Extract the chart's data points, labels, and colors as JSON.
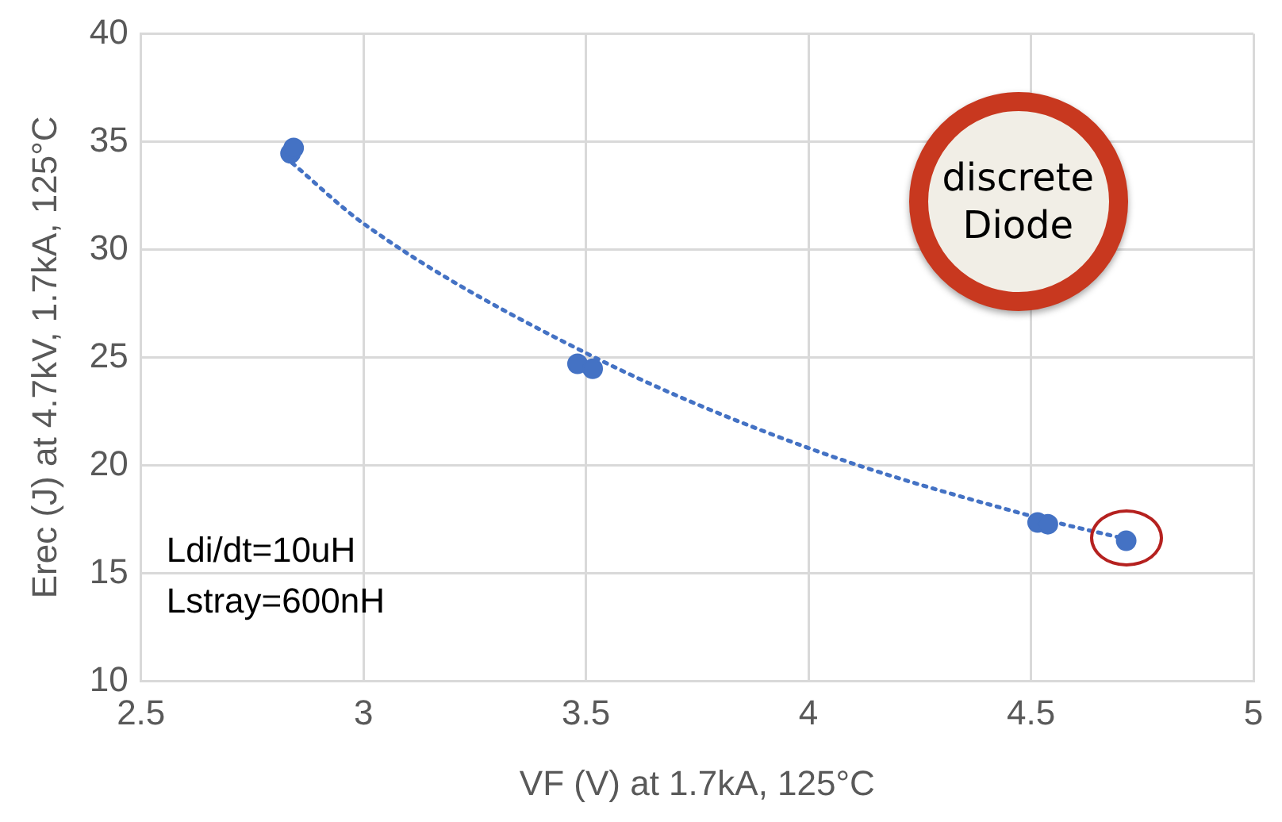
{
  "chart_data": {
    "type": "scatter",
    "xlabel": "VF (V) at 1.7kA, 125°C",
    "ylabel": "Erec (J) at 4.7kV, 1.7kA, 125°C",
    "series": [
      {
        "color": "#4472c4",
        "x": [
          2.836,
          2.843,
          3.481,
          3.515,
          4.515,
          4.538,
          4.714
        ],
        "values": [
          34.45,
          34.7,
          24.7,
          24.47,
          17.35,
          17.27,
          16.5
        ],
        "marker": "circle"
      },
      {
        "type": "line",
        "color": "#4472c4",
        "line_style": "dotted",
        "marker": "none",
        "x": [
          2.84,
          3.0,
          3.5,
          4.0,
          4.5,
          4.71
        ],
        "values": [
          34.0,
          31.2,
          25.2,
          20.8,
          17.65,
          16.6
        ]
      }
    ],
    "xlim": [
      2.5,
      5
    ],
    "xticks": [
      2.5,
      3,
      3.5,
      4,
      4.5,
      5
    ],
    "ylim": [
      10,
      40
    ],
    "yticks": [
      10,
      15,
      20,
      25,
      30,
      35,
      40
    ],
    "grid": true,
    "legend": false,
    "annotations": [
      "discrete Diode",
      "Ldi/dt=10uH",
      "Lstray=600nH"
    ]
  }
}
